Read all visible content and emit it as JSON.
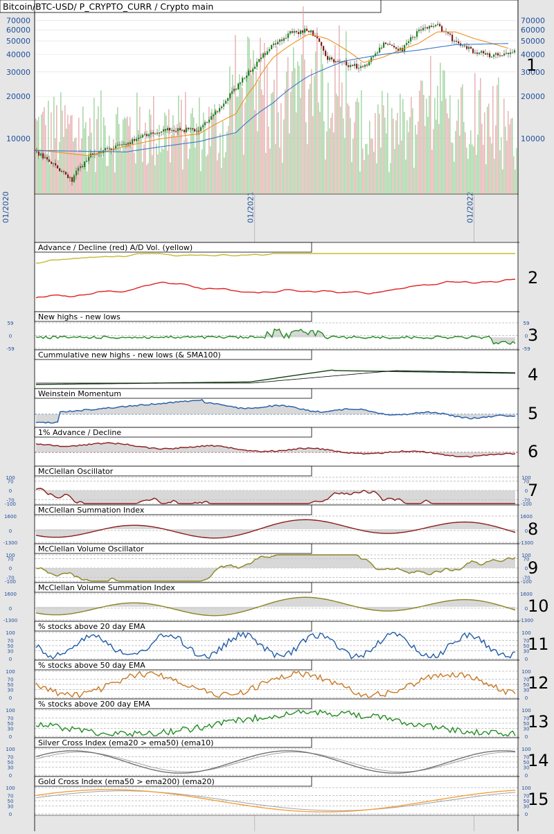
{
  "header": {
    "title": "Bitcoin/BTC-USD/ P_CRYPTO_CURR / Crypto main"
  },
  "colors": {
    "background": "#e6e6e6",
    "panel": "#ffffff",
    "axis_text": "#1f4e9c",
    "up_candle": "#1a8a1a",
    "down_candle": "#8b1a1a",
    "sma50": "#f0901e",
    "sma200": "#3a78c8",
    "ad_red": "#e02020",
    "ad_yellow": "#c8b832",
    "green": "#228b22",
    "blue": "#1f5aa6",
    "dark_red": "#8b1a1a",
    "olive": "#8a8420",
    "orange": "#c87822",
    "gray": "#707070",
    "gold_orange": "#f0a040"
  },
  "chart_data": [
    {
      "type": "candlestick",
      "title": "Bitcoin/BTC-USD/ P_CRYPTO_CURR / Crypto main",
      "panel_number": "1",
      "y_scale": "log",
      "ylim": [
        4000,
        80000
      ],
      "y_ticks": [
        10000,
        20000,
        30000,
        40000,
        50000,
        60000,
        70000
      ],
      "x_ticks": [
        "01/2020",
        "01/2021",
        "01/2022"
      ],
      "x_range": [
        "2020-01",
        "2022-03"
      ],
      "series": [
        {
          "name": "price",
          "x": [
            "2020-01",
            "2020-03",
            "2020-04",
            "2020-06",
            "2020-08",
            "2020-10",
            "2020-11",
            "2020-12",
            "2021-01",
            "2021-02",
            "2021-03",
            "2021-04",
            "2021-05",
            "2021-06",
            "2021-07",
            "2021-08",
            "2021-09",
            "2021-10",
            "2021-11",
            "2021-12",
            "2022-01",
            "2022-02",
            "2022-03"
          ],
          "values": [
            8000,
            5000,
            7500,
            9300,
            11500,
            11500,
            16000,
            23000,
            34000,
            48000,
            57000,
            60000,
            38000,
            34000,
            32000,
            47000,
            43000,
            60000,
            64000,
            48000,
            42000,
            39000,
            42000
          ]
        },
        {
          "name": "sma50",
          "x": [
            "2020-01",
            "2020-04",
            "2020-06",
            "2020-08",
            "2020-10",
            "2020-12",
            "2021-01",
            "2021-02",
            "2021-04",
            "2021-05",
            "2021-07",
            "2021-08",
            "2021-10",
            "2021-11",
            "2021-12",
            "2022-01",
            "2022-03"
          ],
          "values": [
            8300,
            7500,
            8800,
            10000,
            10800,
            15000,
            24000,
            38000,
            56000,
            52000,
            35000,
            38000,
            48000,
            58000,
            58000,
            52000,
            44000
          ]
        },
        {
          "name": "sma200",
          "x": [
            "2020-01",
            "2020-06",
            "2020-10",
            "2020-12",
            "2021-02",
            "2021-04",
            "2021-06",
            "2021-08",
            "2021-10",
            "2021-12",
            "2022-03"
          ],
          "values": [
            8200,
            8000,
            9500,
            11000,
            18000,
            28000,
            36000,
            40000,
            43000,
            47000,
            48000
          ]
        }
      ]
    },
    {
      "type": "line",
      "title": "Advance / Decline (red) A/D Vol. (yellow)",
      "panel_number": "2"
    },
    {
      "type": "area",
      "title": "New highs - new lows",
      "panel_number": "3",
      "y_ticks": [
        59,
        0,
        -59
      ]
    },
    {
      "type": "line",
      "title": "Cummulative new highs - new lows (& SMA100)",
      "panel_number": "4"
    },
    {
      "type": "area",
      "title": "Weinstein Momentum",
      "panel_number": "5"
    },
    {
      "type": "area",
      "title": "1% Advance / Decline",
      "panel_number": "6"
    },
    {
      "type": "area",
      "title": "McClellan Oscillator",
      "panel_number": "7",
      "y_ticks": [
        100,
        70,
        0,
        -70,
        -100
      ]
    },
    {
      "type": "area",
      "title": "McClellan Summation Index",
      "panel_number": "8",
      "y_ticks": [
        1600,
        0,
        -1300
      ]
    },
    {
      "type": "area",
      "title": "McClellan Volume Oscillator",
      "panel_number": "9",
      "y_ticks": [
        100,
        70,
        0,
        -70,
        -100
      ]
    },
    {
      "type": "area",
      "title": "McClellan Volume Summation Index",
      "panel_number": "10",
      "y_ticks": [
        1600,
        0,
        -1300
      ]
    },
    {
      "type": "line",
      "title": "% stocks above 20 day EMA",
      "panel_number": "11",
      "y_ticks": [
        100,
        70,
        50,
        30,
        0
      ]
    },
    {
      "type": "line",
      "title": "% stocks above 50 day EMA",
      "panel_number": "12",
      "y_ticks": [
        100,
        70,
        50,
        30,
        0
      ]
    },
    {
      "type": "line",
      "title": "% stocks above 200 day EMA",
      "panel_number": "13",
      "y_ticks": [
        100,
        70,
        50,
        30,
        0
      ]
    },
    {
      "type": "line",
      "title": "Silver Cross Index (ema20 > ema50) (ema10)",
      "panel_number": "14",
      "y_ticks": [
        100,
        70,
        50,
        30,
        0
      ]
    },
    {
      "type": "line",
      "title": "Gold Cross Index (ema50 > ema200) (ema20)",
      "panel_number": "15",
      "y_ticks": [
        100,
        70,
        50,
        30,
        0
      ]
    }
  ]
}
